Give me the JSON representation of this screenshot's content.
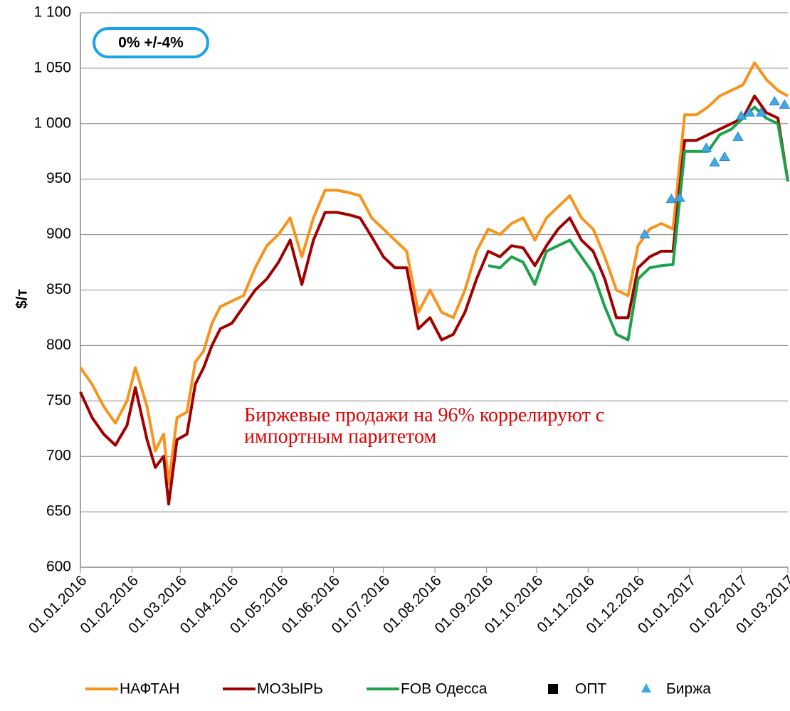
{
  "chart_data": {
    "type": "line",
    "y_label": "$/т",
    "annotation": "Биржевые продажи на 96% коррелируют с импортным паритетом",
    "badge": "0% +/-4%",
    "xlim": [
      "01.01.2016",
      "01.03.2017"
    ],
    "xticks": [
      "01.01.2016",
      "01.02.2016",
      "01.03.2016",
      "01.04.2016",
      "01.05.2016",
      "01.06.2016",
      "01.07.2016",
      "01.08.2016",
      "01.09.2016",
      "01.10.2016",
      "01.11.2016",
      "01.12.2016",
      "01.01.2017",
      "01.02.2017",
      "01.03.2017"
    ],
    "ylim": [
      600,
      1100
    ],
    "yticks": [
      600,
      650,
      700,
      750,
      800,
      850,
      900,
      950,
      {
        "value": 1000,
        "label": "1 000"
      },
      {
        "value": 1050,
        "label": "1 050"
      },
      {
        "value": 1100,
        "label": "1 100"
      }
    ],
    "grid": true,
    "legend": "bottom",
    "x": [
      "01.01.2016",
      "08.01.2016",
      "15.01.2016",
      "22.01.2016",
      "29.01.2016",
      "03.02.2016",
      "10.02.2016",
      "15.02.2016",
      "20.02.2016",
      "23.02.2016",
      "28.02.2016",
      "05.03.2016",
      "10.03.2016",
      "15.03.2016",
      "20.03.2016",
      "25.03.2016",
      "01.04.2016",
      "08.04.2016",
      "15.04.2016",
      "22.04.2016",
      "29.04.2016",
      "06.05.2016",
      "13.05.2016",
      "20.05.2016",
      "27.05.2016",
      "03.06.2016",
      "10.06.2016",
      "17.06.2016",
      "24.06.2016",
      "01.07.2016",
      "08.07.2016",
      "15.07.2016",
      "22.07.2016",
      "29.07.2016",
      "05.08.2016",
      "12.08.2016",
      "19.08.2016",
      "26.08.2016",
      "02.09.2016",
      "09.09.2016",
      "16.09.2016",
      "23.09.2016",
      "30.09.2016",
      "07.10.2016",
      "14.10.2016",
      "21.10.2016",
      "28.10.2016",
      "04.11.2016",
      "11.11.2016",
      "18.11.2016",
      "25.11.2016",
      "01.12.2016",
      "08.12.2016",
      "15.12.2016",
      "22.12.2016",
      "29.12.2016",
      "05.01.2017",
      "12.01.2017",
      "19.01.2017",
      "26.01.2017",
      "02.02.2017",
      "09.02.2017",
      "16.02.2017",
      "23.02.2017",
      "01.03.2017"
    ],
    "series": [
      {
        "name": "НАФТАН",
        "color": "#f7941d",
        "values": [
          780,
          765,
          745,
          730,
          750,
          780,
          745,
          705,
          720,
          675,
          735,
          740,
          785,
          795,
          820,
          835,
          840,
          845,
          870,
          890,
          900,
          915,
          880,
          915,
          940,
          940,
          938,
          935,
          915,
          905,
          895,
          885,
          830,
          850,
          830,
          825,
          850,
          885,
          905,
          900,
          910,
          915,
          895,
          915,
          925,
          935,
          915,
          905,
          880,
          850,
          845,
          890,
          905,
          910,
          905,
          1008,
          1008,
          1015,
          1025,
          1030,
          1035,
          1055,
          1040,
          1030,
          1025
        ]
      },
      {
        "name": "МОЗЫРЬ",
        "color": "#a00000",
        "values": [
          758,
          735,
          720,
          710,
          728,
          762,
          715,
          690,
          700,
          657,
          715,
          720,
          765,
          780,
          800,
          815,
          820,
          835,
          850,
          860,
          875,
          895,
          855,
          895,
          920,
          920,
          918,
          915,
          898,
          880,
          870,
          870,
          815,
          825,
          805,
          810,
          830,
          860,
          885,
          880,
          890,
          888,
          872,
          890,
          905,
          915,
          895,
          885,
          860,
          825,
          825,
          870,
          880,
          885,
          885,
          985,
          985,
          990,
          995,
          1000,
          1005,
          1025,
          1010,
          1005,
          948
        ]
      },
      {
        "name": "FOB Одесса",
        "color": "#1aa34a",
        "values": [
          null,
          null,
          null,
          null,
          null,
          null,
          null,
          null,
          null,
          null,
          null,
          null,
          null,
          null,
          null,
          null,
          null,
          null,
          null,
          null,
          null,
          null,
          null,
          null,
          null,
          null,
          null,
          null,
          null,
          null,
          null,
          null,
          null,
          null,
          null,
          null,
          null,
          null,
          872,
          870,
          880,
          875,
          855,
          885,
          890,
          895,
          880,
          865,
          835,
          810,
          805,
          860,
          870,
          872,
          873,
          975,
          975,
          975,
          990,
          995,
          1005,
          1015,
          1005,
          1000,
          948
        ]
      },
      {
        "name": "ОПТ",
        "color": "#000000",
        "marker": "square",
        "x": [],
        "values": []
      },
      {
        "name": "Биржа",
        "color": "#3fa9e8",
        "marker": "triangle",
        "x": [
          "05.12.2016",
          "21.12.2016",
          "26.12.2016",
          "11.01.2017",
          "16.01.2017",
          "22.01.2017",
          "30.01.2017",
          "01.02.2017",
          "06.02.2017",
          "13.02.2017",
          "21.02.2017",
          "27.02.2017"
        ],
        "values": [
          900,
          932,
          933,
          978,
          965,
          970,
          988,
          1007,
          1010,
          1010,
          1020,
          1017
        ]
      }
    ]
  }
}
